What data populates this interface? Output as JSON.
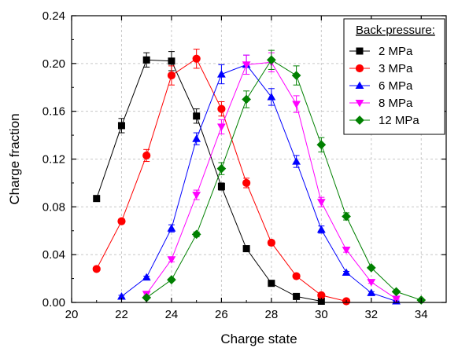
{
  "chart_data": {
    "type": "line",
    "title": "",
    "xlabel": "Charge state",
    "ylabel": "Charge fraction",
    "xlim": [
      20,
      35
    ],
    "ylim": [
      0,
      0.24
    ],
    "x_ticks": [
      20,
      22,
      24,
      26,
      28,
      30,
      32,
      34
    ],
    "y_ticks": [
      0.0,
      0.04,
      0.08,
      0.12,
      0.16,
      0.2,
      0.24
    ],
    "x_tick_labels": [
      "20",
      "22",
      "24",
      "26",
      "28",
      "30",
      "32",
      "34"
    ],
    "y_tick_labels": [
      "0.00",
      "0.04",
      "0.08",
      "0.12",
      "0.16",
      "0.20",
      "0.24"
    ],
    "grid": true,
    "legend_title": "Back-pressure:",
    "legend_position": "top-right",
    "series": [
      {
        "name": "2 MPa",
        "color": "#000000",
        "marker": "square",
        "x": [
          21,
          22,
          23,
          24,
          25,
          26,
          27,
          28,
          29,
          30
        ],
        "y": [
          0.087,
          0.148,
          0.203,
          0.202,
          0.156,
          0.097,
          0.045,
          0.016,
          0.005,
          0.001
        ],
        "err": [
          0.002,
          0.006,
          0.006,
          0.008,
          0.006,
          0.003,
          0.002,
          0.001,
          0.001,
          0.0005
        ]
      },
      {
        "name": "3 MPa",
        "color": "#ff0000",
        "marker": "circle",
        "x": [
          21,
          22,
          23,
          24,
          25,
          26,
          27,
          28,
          29,
          30,
          31
        ],
        "y": [
          0.028,
          0.068,
          0.123,
          0.19,
          0.204,
          0.162,
          0.1,
          0.05,
          0.022,
          0.006,
          0.001
        ],
        "err": [
          0.001,
          0.002,
          0.005,
          0.008,
          0.008,
          0.006,
          0.004,
          0.002,
          0.001,
          0.0005,
          0.0003
        ]
      },
      {
        "name": "6 MPa",
        "color": "#0000ff",
        "marker": "triangle-up",
        "x": [
          22,
          23,
          24,
          25,
          26,
          27,
          28,
          29,
          30,
          31,
          32,
          33
        ],
        "y": [
          0.005,
          0.021,
          0.062,
          0.137,
          0.191,
          0.199,
          0.172,
          0.118,
          0.061,
          0.025,
          0.008,
          0.001
        ],
        "err": [
          0.001,
          0.001,
          0.003,
          0.005,
          0.008,
          0.008,
          0.007,
          0.005,
          0.003,
          0.001,
          0.001,
          0.0003
        ]
      },
      {
        "name": "8 MPa",
        "color": "#ff00ff",
        "marker": "triangle-down",
        "x": [
          23,
          24,
          25,
          26,
          27,
          28,
          29,
          30,
          31,
          32,
          33
        ],
        "y": [
          0.007,
          0.036,
          0.09,
          0.147,
          0.199,
          0.201,
          0.166,
          0.084,
          0.044,
          0.017,
          0.003
        ],
        "err": [
          0.001,
          0.002,
          0.004,
          0.006,
          0.008,
          0.008,
          0.007,
          0.004,
          0.002,
          0.001,
          0.0005
        ]
      },
      {
        "name": "12 MPa",
        "color": "#008000",
        "marker": "diamond",
        "x": [
          23,
          24,
          25,
          26,
          27,
          28,
          29,
          30,
          31,
          32,
          33,
          34
        ],
        "y": [
          0.004,
          0.019,
          0.057,
          0.112,
          0.17,
          0.203,
          0.19,
          0.132,
          0.072,
          0.029,
          0.009,
          0.002
        ],
        "err": [
          0.0005,
          0.001,
          0.002,
          0.005,
          0.007,
          0.008,
          0.008,
          0.006,
          0.003,
          0.001,
          0.0005,
          0.0003
        ]
      }
    ]
  }
}
